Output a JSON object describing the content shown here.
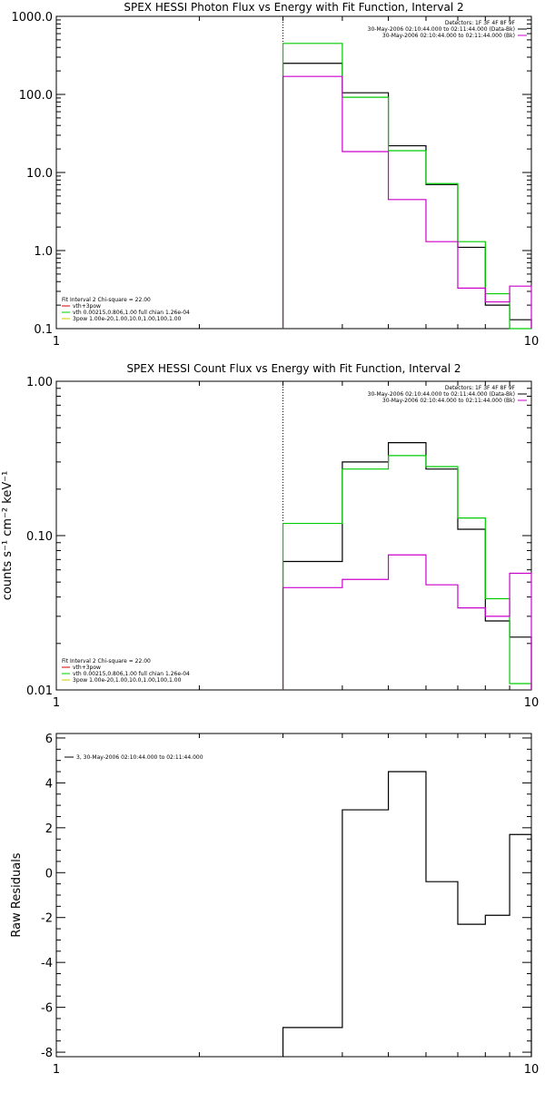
{
  "colors": {
    "data": "#000000",
    "model": "#00cc00",
    "background_component": "#cc00cc",
    "fit_line_red": "#cc0000",
    "vth": "#00cc00",
    "spow": "#cccc00"
  },
  "chart_data": [
    {
      "id": "photon",
      "type": "line",
      "title": "SPEX HESSI Photon Flux vs Energy with Fit Function, Interval 2",
      "xlabel": "",
      "ylabel": "",
      "xscale": "log",
      "yscale": "log",
      "xlim": [
        1,
        10
      ],
      "ylim": [
        0.1,
        1000
      ],
      "x_ticklabels": [
        "1",
        "10"
      ],
      "y_ticklabels": [
        "0.1",
        "1.0",
        "10.0",
        "100.0",
        "1000.0"
      ],
      "vline": 3,
      "legend_top": [
        "Detectors: 1F 3F 4F 8F 9F",
        "30-May-2006 02:10:44.000 to 02:11:44.000 (Data-Bk)",
        "30-May-2006 02:10:44.000 to 02:11:44.000 (Bk)"
      ],
      "legend_bottom": [
        "Fit Interval 2   Chi-square = 22.00",
        "vth+3pow",
        "vth 0.00215,0.806,1.00  full chian 1.26e-04",
        "3pow 1.00e-20,1.00,10.0,1.00,100,1.00"
      ],
      "edges": [
        3,
        4,
        5,
        6,
        7,
        8,
        9,
        10
      ],
      "series": [
        {
          "name": "30-May-2006 02:10:44.000 to 02:11:44.000 (Data-Bk)",
          "color": "#000000",
          "values": [
            250,
            105,
            22,
            7.0,
            1.1,
            0.2,
            0.13
          ]
        },
        {
          "name": "vth+3pow",
          "color": "#00cc00",
          "values": [
            450,
            92,
            19,
            7.2,
            1.3,
            0.28,
            0.09
          ]
        },
        {
          "name": "30-May-2006 02:10:44.000 to 02:11:44.000 (Bk)",
          "color": "#cc00cc",
          "values": [
            170,
            18.5,
            4.5,
            1.3,
            0.33,
            0.22,
            0.35
          ]
        }
      ]
    },
    {
      "id": "count",
      "type": "line",
      "title": "SPEX HESSI Count Flux vs Energy with Fit Function, Interval 2",
      "xlabel": "",
      "ylabel": "counts s⁻¹ cm⁻² keV⁻¹",
      "xscale": "log",
      "yscale": "log",
      "xlim": [
        1,
        10
      ],
      "ylim": [
        0.01,
        1.0
      ],
      "x_ticklabels": [
        "1",
        "10"
      ],
      "y_ticklabels": [
        "0.01",
        "0.10",
        "1.00"
      ],
      "vline": 3,
      "legend_top": [
        "Detectors: 1F 3F 4F 8F 9F",
        "30-May-2006 02:10:44.000 to 02:11:44.000 (Data-Bk)",
        "30-May-2006 02:10:44.000 to 02:11:44.000 (Bk)"
      ],
      "legend_bottom": [
        "Fit Interval 2   Chi-square = 22.00",
        "vth+3pow",
        "vth 0.00215,0.806,1.00  full chian 1.26e-04",
        "3pow 1.00e-20,1.00,10.0,1.00,100,1.00"
      ],
      "edges": [
        3,
        4,
        5,
        6,
        7,
        8,
        9,
        10
      ],
      "series": [
        {
          "name": "30-May-2006 02:10:44.000 to 02:11:44.000 (Data-Bk)",
          "color": "#000000",
          "values": [
            0.068,
            0.3,
            0.4,
            0.27,
            0.11,
            0.028,
            0.022
          ]
        },
        {
          "name": "vth+3pow",
          "color": "#00cc00",
          "values": [
            0.12,
            0.27,
            0.33,
            0.28,
            0.13,
            0.039,
            0.011
          ]
        },
        {
          "name": "30-May-2006 02:10:44.000 to 02:11:44.000 (Bk)",
          "color": "#cc00cc",
          "values": [
            0.046,
            0.052,
            0.075,
            0.048,
            0.034,
            0.03,
            0.057
          ]
        }
      ]
    },
    {
      "id": "resid",
      "type": "line",
      "title": "",
      "xlabel": "",
      "ylabel": "Raw Residuals",
      "xscale": "log",
      "yscale": "linear",
      "xlim": [
        1,
        10
      ],
      "ylim": [
        -8.2,
        6.2
      ],
      "x_ticklabels": [
        "1",
        "10"
      ],
      "y_ticklabels": [
        "-8",
        "-6",
        "-4",
        "-2",
        "0",
        "2",
        "4",
        "6"
      ],
      "legend_top_left": "3, 30-May-2006 02:10:44.000 to 02:11:44.000",
      "edges": [
        3,
        4,
        5,
        6,
        7,
        8,
        9,
        10
      ],
      "series": [
        {
          "name": "3, 30-May-2006 02:10:44.000 to 02:11:44.000",
          "color": "#000000",
          "values": [
            -6.9,
            2.8,
            4.5,
            -0.4,
            -2.3,
            -1.9,
            1.7
          ]
        }
      ]
    }
  ]
}
